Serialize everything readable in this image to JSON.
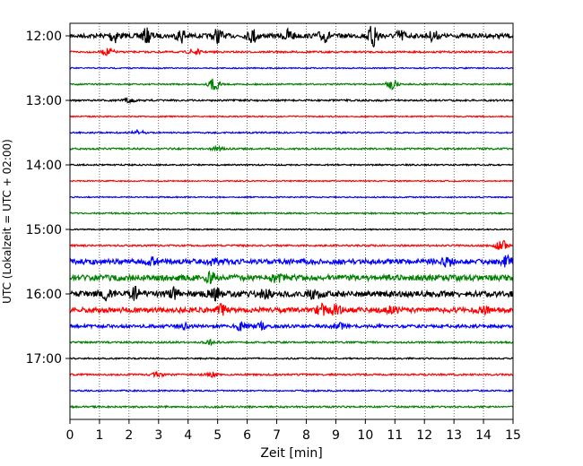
{
  "chart_data": {
    "type": "line",
    "chart_kind": "helicorder",
    "xlabel": "Zeit  [min]",
    "ylabel": "UTC (Lokalzeit = UTC + 02:00)",
    "xlim": [
      0,
      15
    ],
    "x_ticks": [
      "0",
      "1",
      "2",
      "3",
      "4",
      "5",
      "6",
      "7",
      "8",
      "9",
      "10",
      "11",
      "12",
      "13",
      "14",
      "15"
    ],
    "x_grid": "dotted",
    "y_ticks": [
      "12:00",
      "13:00",
      "14:00",
      "15:00",
      "16:00",
      "17:00"
    ],
    "trace_colors": [
      "#000000",
      "#ff0000",
      "#0000ff",
      "#008000"
    ],
    "series": [
      {
        "start": "12:00",
        "amplitude": 0.3,
        "bursts": [
          [
            1.5,
            0.9
          ],
          [
            2.6,
            0.9
          ],
          [
            3.8,
            0.9
          ],
          [
            5.0,
            0.9
          ],
          [
            6.2,
            0.9
          ],
          [
            7.4,
            0.8
          ],
          [
            8.6,
            0.8
          ],
          [
            10.3,
            1.8
          ],
          [
            11.2,
            0.7
          ],
          [
            12.3,
            0.6
          ]
        ]
      },
      {
        "start": "12:15",
        "amplitude": 0.12,
        "bursts": [
          [
            1.3,
            0.5
          ],
          [
            4.2,
            0.5
          ]
        ]
      },
      {
        "start": "12:30",
        "amplitude": 0.08,
        "bursts": []
      },
      {
        "start": "12:45",
        "amplitude": 0.1,
        "bursts": [
          [
            4.9,
            0.9
          ],
          [
            10.9,
            0.7
          ]
        ]
      },
      {
        "start": "13:00",
        "amplitude": 0.12,
        "bursts": [
          [
            2.0,
            0.3
          ]
        ]
      },
      {
        "start": "13:15",
        "amplitude": 0.08,
        "bursts": []
      },
      {
        "start": "13:30",
        "amplitude": 0.1,
        "bursts": [
          [
            2.3,
            0.4
          ]
        ]
      },
      {
        "start": "13:45",
        "amplitude": 0.12,
        "bursts": [
          [
            5.0,
            0.3
          ]
        ]
      },
      {
        "start": "14:00",
        "amplitude": 0.1,
        "bursts": []
      },
      {
        "start": "14:15",
        "amplitude": 0.08,
        "bursts": []
      },
      {
        "start": "14:30",
        "amplitude": 0.08,
        "bursts": []
      },
      {
        "start": "14:45",
        "amplitude": 0.1,
        "bursts": []
      },
      {
        "start": "15:00",
        "amplitude": 0.08,
        "bursts": []
      },
      {
        "start": "15:15",
        "amplitude": 0.12,
        "bursts": [
          [
            14.6,
            0.8
          ]
        ]
      },
      {
        "start": "15:30",
        "amplitude": 0.35,
        "bursts": [
          [
            2.8,
            0.4
          ],
          [
            4.8,
            0.5
          ],
          [
            12.8,
            0.6
          ],
          [
            14.8,
            0.7
          ]
        ]
      },
      {
        "start": "15:45",
        "amplitude": 0.4,
        "bursts": [
          [
            4.8,
            0.6
          ],
          [
            7.0,
            0.4
          ]
        ]
      },
      {
        "start": "16:00",
        "amplitude": 0.4,
        "bursts": [
          [
            1.2,
            0.6
          ],
          [
            2.2,
            0.7
          ],
          [
            3.5,
            0.7
          ],
          [
            4.9,
            0.8
          ],
          [
            6.6,
            0.6
          ],
          [
            8.3,
            0.6
          ]
        ]
      },
      {
        "start": "16:15",
        "amplitude": 0.35,
        "bursts": [
          [
            5.1,
            0.6
          ],
          [
            8.5,
            0.7
          ],
          [
            9.0,
            0.6
          ],
          [
            10.9,
            0.5
          ],
          [
            14.0,
            0.4
          ]
        ]
      },
      {
        "start": "16:30",
        "amplitude": 0.22,
        "bursts": [
          [
            3.8,
            0.5
          ],
          [
            5.8,
            0.5
          ],
          [
            6.5,
            0.4
          ],
          [
            9.1,
            0.4
          ]
        ]
      },
      {
        "start": "16:45",
        "amplitude": 0.12,
        "bursts": [
          [
            4.8,
            0.3
          ]
        ]
      },
      {
        "start": "17:00",
        "amplitude": 0.1,
        "bursts": []
      },
      {
        "start": "17:15",
        "amplitude": 0.12,
        "bursts": [
          [
            3.0,
            0.4
          ],
          [
            4.8,
            0.3
          ]
        ]
      },
      {
        "start": "17:30",
        "amplitude": 0.1,
        "bursts": []
      },
      {
        "start": "17:45",
        "amplitude": 0.12,
        "bursts": []
      }
    ]
  }
}
